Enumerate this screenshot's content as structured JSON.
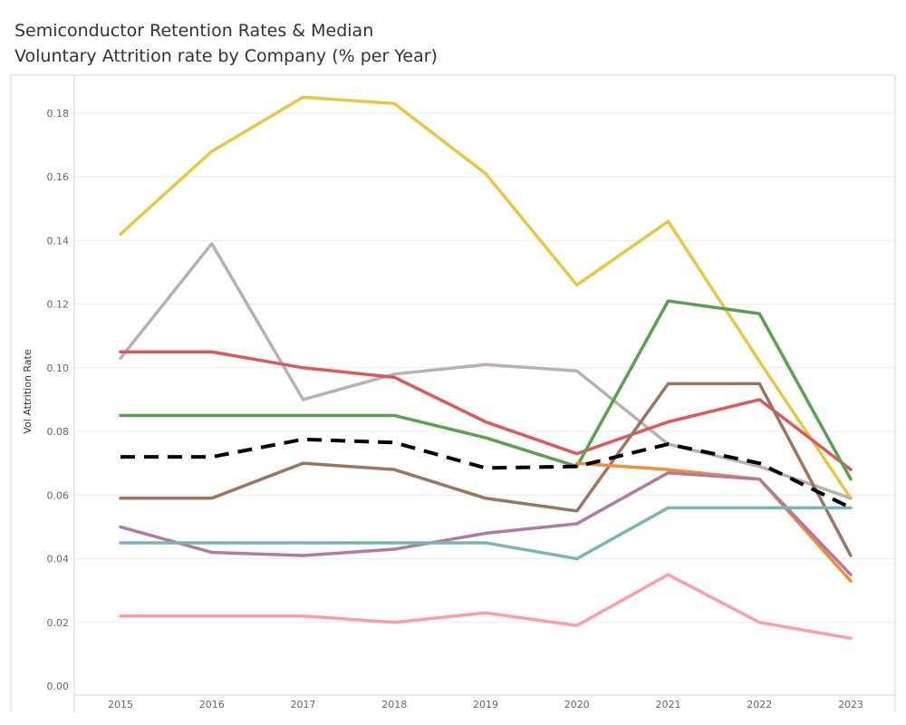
{
  "chart_data": {
    "type": "line",
    "title": "Semiconductor Retention Rates & Median",
    "subtitle": "Voluntary Attrition rate by Company (% per Year)",
    "xlabel": "",
    "ylabel": "Vol Attrition Rate",
    "ylim": [
      0,
      0.2
    ],
    "grid": true,
    "x": [
      "2015",
      "2016",
      "2017",
      "2018",
      "2019",
      "2020",
      "2021",
      "2022",
      "2023"
    ],
    "yticks": [
      "0.00",
      "0.02",
      "0.04",
      "0.06",
      "0.08",
      "0.10",
      "0.12",
      "0.14",
      "0.16",
      "0.18"
    ],
    "series": [
      {
        "name": "yellow-series",
        "color": "#e8c840",
        "values": [
          0.142,
          0.168,
          0.185,
          0.183,
          0.161,
          0.126,
          0.146,
          0.102,
          0.059
        ]
      },
      {
        "name": "gray-series",
        "color": "#bab0ac",
        "values": [
          0.103,
          0.139,
          0.09,
          0.098,
          0.101,
          0.099,
          0.076,
          0.069,
          0.059
        ]
      },
      {
        "name": "red-series",
        "color": "#e15759",
        "values": [
          0.105,
          0.105,
          0.1,
          0.097,
          0.083,
          0.073,
          0.083,
          0.09,
          0.068
        ]
      },
      {
        "name": "green-series",
        "color": "#59a14f",
        "values": [
          0.085,
          0.085,
          0.085,
          0.085,
          0.078,
          0.069,
          0.121,
          0.117,
          0.065
        ]
      },
      {
        "name": "brown-series",
        "color": "#9c755f",
        "values": [
          0.059,
          0.059,
          0.07,
          0.068,
          0.059,
          0.055,
          0.095,
          0.095,
          0.041
        ]
      },
      {
        "name": "orange-series",
        "color": "#f28e2b",
        "values": [
          null,
          null,
          null,
          null,
          null,
          0.07,
          0.068,
          0.065,
          0.033
        ]
      },
      {
        "name": "purple-series",
        "color": "#b07aa1",
        "values": [
          0.05,
          0.042,
          0.041,
          0.043,
          0.048,
          0.051,
          0.067,
          0.065,
          0.035
        ]
      },
      {
        "name": "teal-series",
        "color": "#76b7b2",
        "values": [
          0.045,
          0.045,
          0.045,
          0.045,
          0.045,
          0.04,
          0.056,
          0.056,
          0.056
        ]
      },
      {
        "name": "pink-series",
        "color": "#ff9da7",
        "values": [
          0.022,
          0.022,
          0.022,
          0.02,
          0.023,
          0.019,
          0.035,
          0.02,
          0.015
        ]
      },
      {
        "name": "median-series",
        "color": "#000000",
        "dashed": true,
        "values": [
          0.072,
          0.072,
          0.0775,
          0.0765,
          0.0685,
          0.069,
          0.076,
          0.07,
          0.056
        ]
      }
    ]
  }
}
